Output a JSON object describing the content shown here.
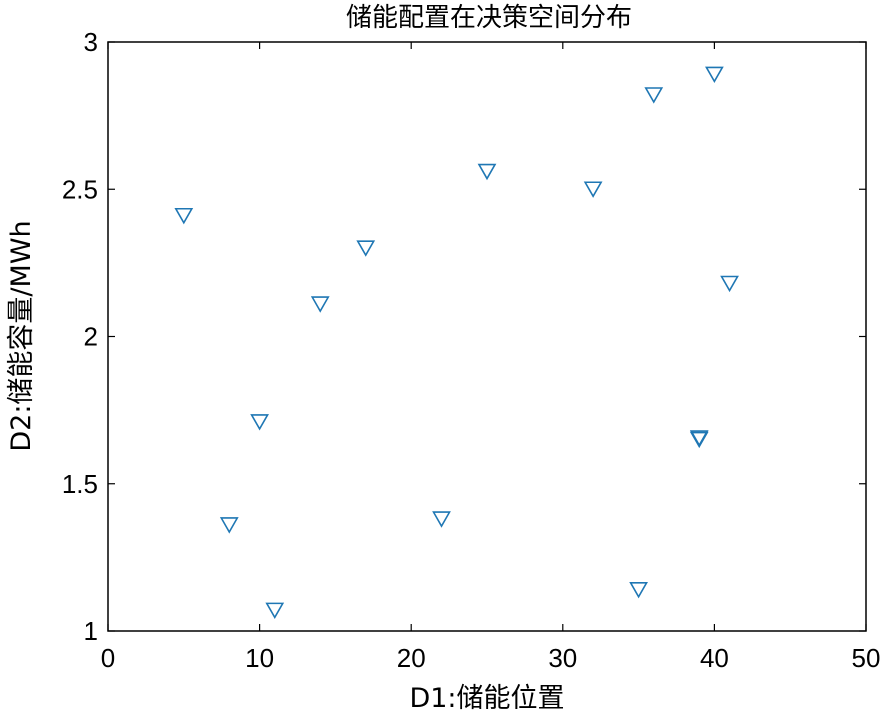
{
  "chart_data": {
    "type": "scatter",
    "title": "储能配置在决策空间分布",
    "xlabel": "D1:储能位置",
    "ylabel": "D2:储能容量/MWh",
    "xlim": [
      0,
      50
    ],
    "ylim": [
      1,
      3
    ],
    "xticks": [
      0,
      10,
      20,
      30,
      40,
      50
    ],
    "yticks": [
      1,
      1.5,
      2,
      2.5,
      3
    ],
    "xtick_labels": [
      "0",
      "10",
      "20",
      "30",
      "40",
      "50"
    ],
    "ytick_labels": [
      "1",
      "1.5",
      "2",
      "2.5",
      "3"
    ],
    "grid": false,
    "marker": "triangle-down",
    "marker_color": "#1f77b4",
    "points": [
      {
        "x": 5,
        "y": 2.41
      },
      {
        "x": 8,
        "y": 1.36
      },
      {
        "x": 10,
        "y": 1.71
      },
      {
        "x": 11,
        "y": 1.07
      },
      {
        "x": 14,
        "y": 2.11
      },
      {
        "x": 17,
        "y": 2.3
      },
      {
        "x": 22,
        "y": 1.38
      },
      {
        "x": 25,
        "y": 2.56
      },
      {
        "x": 32,
        "y": 2.5
      },
      {
        "x": 35,
        "y": 1.14
      },
      {
        "x": 36,
        "y": 2.82
      },
      {
        "x": 39,
        "y": 1.65
      },
      {
        "x": 39,
        "y": 1.655
      },
      {
        "x": 40,
        "y": 2.89
      },
      {
        "x": 41,
        "y": 2.18
      }
    ]
  }
}
